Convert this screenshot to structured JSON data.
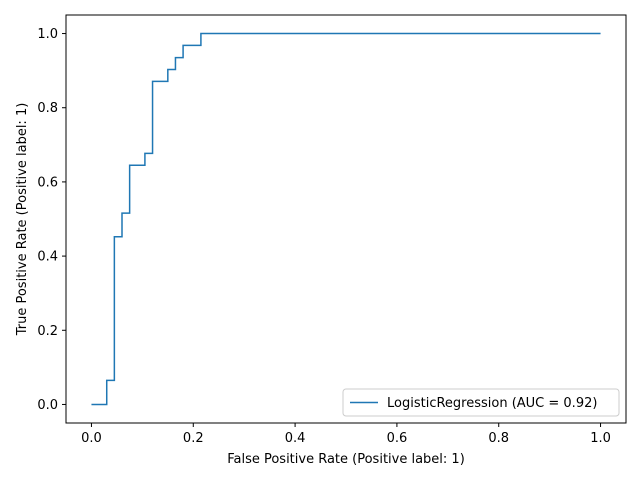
{
  "chart_data": {
    "type": "line",
    "title": "",
    "xlabel": "False Positive Rate (Positive label: 1)",
    "ylabel": "True Positive Rate (Positive label: 1)",
    "xlim": [
      -0.05,
      1.05
    ],
    "ylim": [
      -0.05,
      1.05
    ],
    "xticks": [
      0.0,
      0.2,
      0.4,
      0.6,
      0.8,
      1.0
    ],
    "yticks": [
      0.0,
      0.2,
      0.4,
      0.6,
      0.8,
      1.0
    ],
    "xtick_labels": [
      "0.0",
      "0.2",
      "0.4",
      "0.6",
      "0.8",
      "1.0"
    ],
    "ytick_labels": [
      "0.0",
      "0.2",
      "0.4",
      "0.6",
      "0.8",
      "1.0"
    ],
    "grid": false,
    "legend_position": "lower-right",
    "series": [
      {
        "name": "LogisticRegression (AUC = 0.92)",
        "color": "#1f77b4",
        "x": [
          0.0,
          0.03,
          0.03,
          0.045,
          0.045,
          0.06,
          0.06,
          0.075,
          0.075,
          0.105,
          0.105,
          0.12,
          0.12,
          0.15,
          0.15,
          0.165,
          0.165,
          0.18,
          0.18,
          0.215,
          0.215,
          1.0
        ],
        "y": [
          0.0,
          0.0,
          0.065,
          0.065,
          0.452,
          0.452,
          0.516,
          0.516,
          0.645,
          0.645,
          0.677,
          0.677,
          0.871,
          0.871,
          0.903,
          0.903,
          0.935,
          0.935,
          0.968,
          0.968,
          1.0,
          1.0
        ]
      }
    ]
  }
}
